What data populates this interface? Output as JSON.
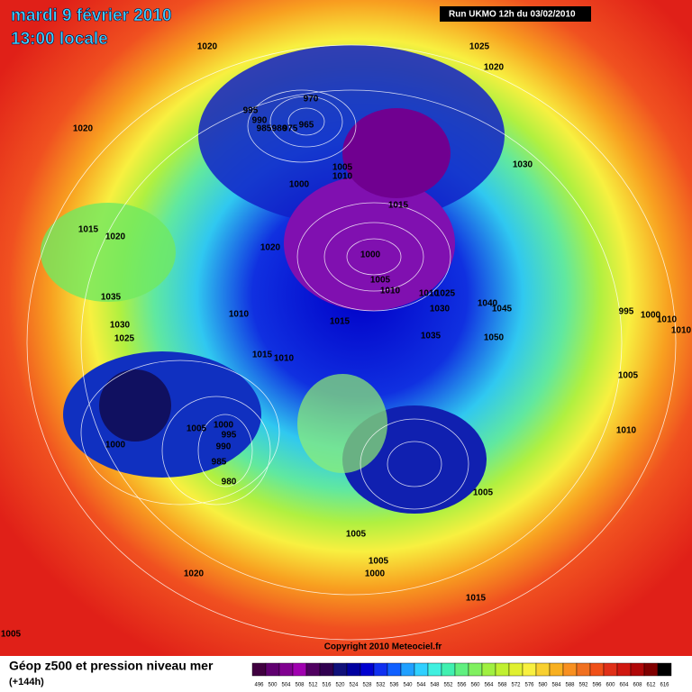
{
  "header": {
    "date": "mardi 9 février 2010",
    "time": "13:00 locale",
    "run": "Run UKMO 12h du 03/02/2010"
  },
  "pressure_labels": [
    "1020",
    "1025",
    "1020",
    "1020",
    "995",
    "990",
    "985",
    "980",
    "975",
    "970",
    "965",
    "1005",
    "1010",
    "1030",
    "1000",
    "1015",
    "1015",
    "1020",
    "1020",
    "1000",
    "1005",
    "1010",
    "1010",
    "1025",
    "1030",
    "1040",
    "1045",
    "995",
    "1000",
    "1010",
    "1010",
    "1035",
    "1010",
    "1030",
    "1015",
    "1025",
    "1035",
    "1050",
    "1015",
    "1010",
    "1005",
    "1005",
    "1000",
    "995",
    "1010",
    "990",
    "1000",
    "985",
    "980",
    "1005",
    "1005",
    "1005",
    "1000",
    "1020",
    "1015",
    "1005"
  ],
  "copyright": "Copyright 2010 Meteociel.fr",
  "legend": {
    "title": "Géop z500 et pression niveau mer",
    "subtitle": "(+144h)",
    "scale": [
      "496",
      "500",
      "504",
      "508",
      "512",
      "516",
      "520",
      "524",
      "528",
      "532",
      "536",
      "540",
      "544",
      "548",
      "552",
      "556",
      "560",
      "564",
      "568",
      "572",
      "576",
      "580",
      "584",
      "588",
      "592",
      "596",
      "600",
      "604",
      "608",
      "612",
      "616"
    ]
  }
}
